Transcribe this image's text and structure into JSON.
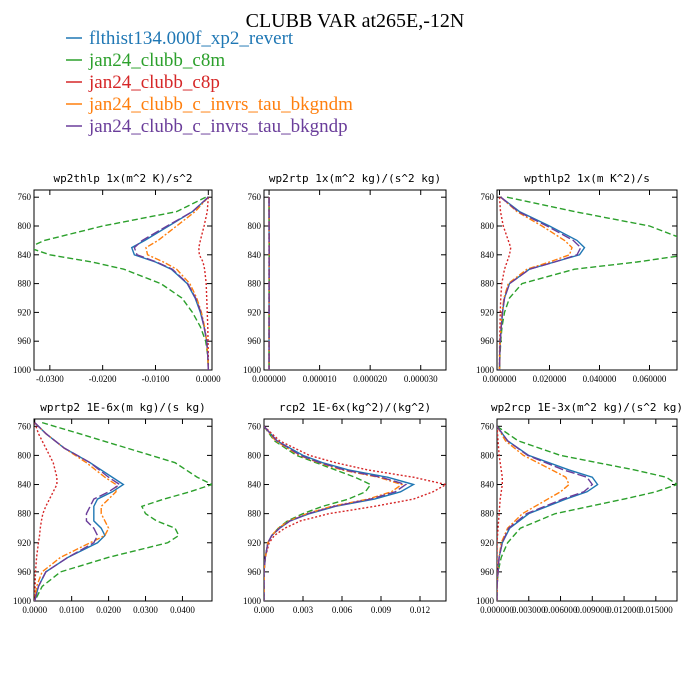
{
  "figure": {
    "title": "CLUBB VAR at265E,-12N",
    "legend": [
      {
        "label": "flthist134.000f_xp2_revert",
        "color": "#1f77b4",
        "dash": "solid"
      },
      {
        "label": "jan24_clubb_c8m",
        "color": "#2ca02c",
        "dash": "dash"
      },
      {
        "label": "jan24_clubb_c8p",
        "color": "#d62728",
        "dash": "dot"
      },
      {
        "label": "jan24_clubb_c_invrs_tau_bkgndm",
        "color": "#ff7f0e",
        "dash": "dashdot"
      },
      {
        "label": "jan24_clubb_c_invrs_tau_bkgndp",
        "color": "#6a3d9a",
        "dash": "longdash"
      }
    ]
  },
  "chart_data": [
    {
      "type": "line",
      "title": "wp2thlp 1x(m^2 K)/s^2",
      "xlim": [
        -0.033,
        0.0007
      ],
      "ylim": [
        1000,
        750
      ],
      "yticks": [
        760,
        800,
        840,
        880,
        920,
        960,
        1000
      ],
      "xticks": [
        -0.03,
        -0.02,
        -0.01,
        0.0
      ],
      "xtick_labels": [
        "-0.0300",
        "-0.0200",
        "-0.0100",
        "0.0000"
      ],
      "y": [
        760,
        780,
        800,
        820,
        830,
        840,
        850,
        860,
        880,
        900,
        920,
        940,
        960,
        980,
        1000
      ],
      "series": [
        {
          "name": "flthist134.000f_xp2_revert",
          "values": [
            0.0,
            -0.003,
            -0.0075,
            -0.012,
            -0.0145,
            -0.014,
            -0.01,
            -0.007,
            -0.004,
            -0.0025,
            -0.0015,
            -0.0008,
            -0.0003,
            -0.0001,
            0.0
          ]
        },
        {
          "name": "jan24_clubb_c8m",
          "values": [
            -0.0005,
            -0.006,
            -0.02,
            -0.031,
            -0.034,
            -0.03,
            -0.022,
            -0.016,
            -0.009,
            -0.005,
            -0.003,
            -0.0015,
            -0.0005,
            -0.0001,
            0.0
          ]
        },
        {
          "name": "jan24_clubb_c8p",
          "values": [
            0.0,
            -0.0002,
            -0.0008,
            -0.0015,
            -0.0018,
            -0.0017,
            -0.001,
            -0.0007,
            -0.0004,
            -0.0003,
            -0.0002,
            -0.0001,
            -5e-05,
            0.0,
            0.0
          ]
        },
        {
          "name": "jan24_clubb_c_invrs_tau_bkgndm",
          "values": [
            0.0,
            -0.0025,
            -0.006,
            -0.0095,
            -0.0118,
            -0.0115,
            -0.0085,
            -0.006,
            -0.0035,
            -0.0022,
            -0.0013,
            -0.0007,
            -0.0003,
            -0.0001,
            0.0
          ]
        },
        {
          "name": "jan24_clubb_c_invrs_tau_bkgndp",
          "values": [
            0.0,
            -0.003,
            -0.0078,
            -0.0125,
            -0.014,
            -0.0135,
            -0.0098,
            -0.0068,
            -0.0039,
            -0.0024,
            -0.0014,
            -0.0008,
            -0.0003,
            -0.0001,
            0.0
          ]
        }
      ]
    },
    {
      "type": "line",
      "title": "wp2rtp 1x(m^2 kg)/(s^2 kg)",
      "xlim": [
        -1e-06,
        3.5e-05
      ],
      "ylim": [
        1000,
        750
      ],
      "yticks": [
        760,
        800,
        840,
        880,
        920,
        960,
        1000
      ],
      "xticks": [
        0.0,
        1e-05,
        2e-05,
        3e-05
      ],
      "xtick_labels": [
        "0.000000",
        "0.000010",
        "0.000020",
        "0.000030"
      ],
      "y": [
        760,
        780,
        800,
        820,
        830,
        840,
        850,
        860,
        880,
        900,
        920,
        940,
        960,
        980,
        1000
      ],
      "series": [
        {
          "name": "flthist134.000f_xp2_revert",
          "values": [
            0.0,
            0.0015,
            0.005,
            0.0115,
            0.0165,
            0.017,
            0.0155,
            0.012,
            0.009,
            0.007,
            0.0052,
            0.0038,
            0.0025,
            0.0012,
            0.0003
          ]
        },
        {
          "name": "jan24_clubb_c8m",
          "values": [
            0.0005,
            0.004,
            0.013,
            0.026,
            0.032,
            0.034,
            0.033,
            0.029,
            0.022,
            0.0175,
            0.0125,
            0.0085,
            0.005,
            0.002,
            0.0005
          ]
        },
        {
          "name": "jan24_clubb_c8p",
          "values": [
            0.0,
            0.0003,
            0.001,
            0.0025,
            0.0033,
            0.0035,
            0.003,
            0.0022,
            0.0015,
            0.001,
            0.0007,
            0.0005,
            0.0003,
            0.0001,
            0.0
          ]
        },
        {
          "name": "jan24_clubb_c_invrs_tau_bkgndm",
          "values": [
            0.0,
            0.0013,
            0.0045,
            0.0105,
            0.0145,
            0.0155,
            0.0145,
            0.0115,
            0.0087,
            0.0068,
            0.0051,
            0.0037,
            0.0024,
            0.0011,
            0.0003
          ]
        },
        {
          "name": "jan24_clubb_c_invrs_tau_bkgndp",
          "values": [
            0.0,
            0.0016,
            0.0052,
            0.012,
            0.0168,
            0.0178,
            0.0165,
            0.0125,
            0.0092,
            0.0071,
            0.0053,
            0.0039,
            0.0026,
            0.0012,
            0.0003
          ]
        }
      ],
      "value_scale": 1e-06
    },
    {
      "type": "line",
      "title": "wpthlp2 1x(m K^2)/s",
      "xlim": [
        -0.001,
        0.071
      ],
      "ylim": [
        1000,
        750
      ],
      "yticks": [
        760,
        800,
        840,
        880,
        920,
        960,
        1000
      ],
      "xticks": [
        0.0,
        0.02,
        0.04,
        0.06
      ],
      "xtick_labels": [
        "0.000000",
        "0.020000",
        "0.040000",
        "0.060000"
      ],
      "y": [
        760,
        780,
        800,
        820,
        830,
        840,
        850,
        860,
        880,
        900,
        920,
        940,
        960,
        980,
        1000
      ],
      "series": [
        {
          "name": "flthist134.000f_xp2_revert",
          "values": [
            0.0005,
            0.008,
            0.02,
            0.031,
            0.034,
            0.032,
            0.022,
            0.012,
            0.004,
            0.002,
            0.0012,
            0.0007,
            0.0003,
            0.0001,
            0.0
          ]
        },
        {
          "name": "jan24_clubb_c8m",
          "values": [
            0.003,
            0.03,
            0.06,
            0.075,
            0.08,
            0.075,
            0.055,
            0.03,
            0.009,
            0.004,
            0.002,
            0.001,
            0.0005,
            0.0002,
            0.0
          ]
        },
        {
          "name": "jan24_clubb_c8p",
          "values": [
            0.0,
            0.0004,
            0.0015,
            0.0035,
            0.0045,
            0.004,
            0.003,
            0.002,
            0.0009,
            0.0005,
            0.0003,
            0.0002,
            0.0001,
            0.0,
            0.0
          ]
        },
        {
          "name": "jan24_clubb_c_invrs_tau_bkgndm",
          "values": [
            0.0005,
            0.007,
            0.017,
            0.026,
            0.029,
            0.028,
            0.02,
            0.011,
            0.0035,
            0.0018,
            0.001,
            0.0006,
            0.0003,
            0.0001,
            0.0
          ]
        },
        {
          "name": "jan24_clubb_c_invrs_tau_bkgndp",
          "values": [
            0.0005,
            0.0075,
            0.019,
            0.0295,
            0.0325,
            0.031,
            0.022,
            0.012,
            0.004,
            0.002,
            0.0012,
            0.0007,
            0.0003,
            0.0001,
            0.0
          ]
        }
      ]
    },
    {
      "type": "line",
      "title": "wprtp2 1E-6x(m kg)/(s kg)",
      "xlim": [
        -0.0002,
        0.048
      ],
      "ylim": [
        1000,
        750
      ],
      "yticks": [
        760,
        800,
        840,
        880,
        920,
        960,
        1000
      ],
      "xticks": [
        0.0,
        0.01,
        0.02,
        0.03,
        0.04
      ],
      "xtick_labels": [
        "0.0000",
        "0.0100",
        "0.0200",
        "0.0300",
        "0.0400"
      ],
      "y": [
        755,
        770,
        790,
        810,
        830,
        840,
        850,
        860,
        870,
        880,
        890,
        900,
        910,
        920,
        940,
        960,
        980,
        1000
      ],
      "series": [
        {
          "name": "flthist134.000f_xp2_revert",
          "values": [
            0.0,
            0.003,
            0.008,
            0.015,
            0.021,
            0.024,
            0.021,
            0.017,
            0.016,
            0.016,
            0.016,
            0.018,
            0.019,
            0.017,
            0.009,
            0.003,
            0.001,
            0.0
          ]
        },
        {
          "name": "jan24_clubb_c8m",
          "values": [
            0.002,
            0.012,
            0.025,
            0.038,
            0.044,
            0.048,
            0.042,
            0.035,
            0.029,
            0.03,
            0.033,
            0.038,
            0.039,
            0.036,
            0.02,
            0.007,
            0.002,
            0.0
          ]
        },
        {
          "name": "jan24_clubb_c8p",
          "values": [
            0.0,
            0.001,
            0.003,
            0.005,
            0.006,
            0.006,
            0.005,
            0.004,
            0.003,
            0.0022,
            0.0018,
            0.0015,
            0.0013,
            0.001,
            0.0005,
            0.0002,
            0.0001,
            0.0
          ]
        },
        {
          "name": "jan24_clubb_c_invrs_tau_bkgndm",
          "values": [
            0.0,
            0.003,
            0.008,
            0.014,
            0.019,
            0.022,
            0.022,
            0.02,
            0.018,
            0.018,
            0.019,
            0.02,
            0.019,
            0.015,
            0.007,
            0.002,
            0.0005,
            0.0
          ]
        },
        {
          "name": "jan24_clubb_c_invrs_tau_bkgndp",
          "values": [
            0.0,
            0.003,
            0.008,
            0.015,
            0.02,
            0.023,
            0.02,
            0.016,
            0.015,
            0.014,
            0.014,
            0.016,
            0.017,
            0.016,
            0.009,
            0.003,
            0.001,
            0.0
          ]
        }
      ]
    },
    {
      "type": "line",
      "title": "rcp2 1E-6x(kg^2)/(kg^2)",
      "xlim": [
        0.0,
        0.014
      ],
      "ylim": [
        1000,
        750
      ],
      "yticks": [
        760,
        800,
        840,
        880,
        920,
        960,
        1000
      ],
      "xticks": [
        0.0,
        0.003,
        0.006,
        0.009,
        0.012
      ],
      "xtick_labels": [
        "0.000",
        "0.003",
        "0.006",
        "0.009",
        "0.012"
      ],
      "y": [
        760,
        780,
        800,
        810,
        820,
        830,
        840,
        850,
        860,
        870,
        880,
        890,
        900,
        910,
        920,
        940,
        960,
        1000
      ],
      "series": [
        {
          "name": "flthist134.000f_xp2_revert",
          "values": [
            0.0,
            0.001,
            0.003,
            0.0045,
            0.0065,
            0.0095,
            0.0115,
            0.0105,
            0.0085,
            0.0055,
            0.0035,
            0.002,
            0.0012,
            0.0006,
            0.0003,
            0.0001,
            0.0,
            0.0
          ]
        },
        {
          "name": "jan24_clubb_c8m",
          "values": [
            0.0,
            0.0008,
            0.0025,
            0.004,
            0.0055,
            0.007,
            0.0082,
            0.0078,
            0.0065,
            0.0045,
            0.003,
            0.0018,
            0.0011,
            0.0006,
            0.0003,
            0.0001,
            0.0,
            0.0
          ]
        },
        {
          "name": "jan24_clubb_c8p",
          "values": [
            0.0,
            0.0012,
            0.0035,
            0.0055,
            0.008,
            0.0115,
            0.014,
            0.013,
            0.0115,
            0.0085,
            0.005,
            0.0028,
            0.0016,
            0.0008,
            0.0004,
            0.0001,
            0.0,
            0.0
          ]
        },
        {
          "name": "jan24_clubb_c_invrs_tau_bkgndm",
          "values": [
            0.0,
            0.0009,
            0.0027,
            0.0042,
            0.006,
            0.0088,
            0.0106,
            0.0098,
            0.008,
            0.0052,
            0.0033,
            0.0019,
            0.0011,
            0.0006,
            0.0003,
            0.0001,
            0.0,
            0.0
          ]
        },
        {
          "name": "jan24_clubb_c_invrs_tau_bkgndp",
          "values": [
            0.0,
            0.001,
            0.0028,
            0.0043,
            0.0062,
            0.009,
            0.0109,
            0.0101,
            0.0082,
            0.0054,
            0.0034,
            0.002,
            0.0012,
            0.0006,
            0.0003,
            0.0001,
            0.0,
            0.0
          ]
        }
      ]
    },
    {
      "type": "line",
      "title": "wp2rcp 1E-3x(m^2 kg)/(s^2 kg)",
      "xlim": [
        0.0,
        0.017
      ],
      "ylim": [
        1000,
        750
      ],
      "yticks": [
        760,
        800,
        840,
        880,
        920,
        960,
        1000
      ],
      "xticks": [
        0.0,
        0.003,
        0.006,
        0.009,
        0.012,
        0.015
      ],
      "xtick_labels": [
        "0.000000",
        "0.003000",
        "0.006000",
        "0.009000",
        "0.012000",
        "0.015000"
      ],
      "y": [
        760,
        780,
        800,
        820,
        830,
        840,
        850,
        860,
        880,
        900,
        920,
        940,
        960,
        980,
        1000
      ],
      "series": [
        {
          "name": "flthist134.000f_xp2_revert",
          "values": [
            0.0,
            0.001,
            0.003,
            0.0068,
            0.009,
            0.0095,
            0.0085,
            0.0065,
            0.003,
            0.0012,
            0.0005,
            0.0002,
            0.0001,
            0.0,
            0.0
          ]
        },
        {
          "name": "jan24_clubb_c8m",
          "values": [
            0.0,
            0.002,
            0.006,
            0.013,
            0.016,
            0.017,
            0.015,
            0.012,
            0.0055,
            0.0022,
            0.001,
            0.0004,
            0.0001,
            0.0,
            0.0
          ]
        },
        {
          "name": "jan24_clubb_c8p",
          "values": [
            0.0,
            0.0001,
            0.0002,
            0.0004,
            0.0005,
            0.0005,
            0.0004,
            0.0003,
            0.0002,
            0.0001,
            0.0,
            0.0,
            0.0,
            0.0,
            0.0
          ]
        },
        {
          "name": "jan24_clubb_c_invrs_tau_bkgndm",
          "values": [
            0.0,
            0.0008,
            0.0025,
            0.0052,
            0.0065,
            0.0068,
            0.006,
            0.0048,
            0.0024,
            0.001,
            0.0004,
            0.0002,
            0.0001,
            0.0,
            0.0
          ]
        },
        {
          "name": "jan24_clubb_c_invrs_tau_bkgndp",
          "values": [
            0.0,
            0.001,
            0.0029,
            0.0063,
            0.0085,
            0.009,
            0.0082,
            0.0062,
            0.0028,
            0.0011,
            0.0005,
            0.0002,
            0.0001,
            0.0,
            0.0
          ]
        }
      ]
    }
  ]
}
